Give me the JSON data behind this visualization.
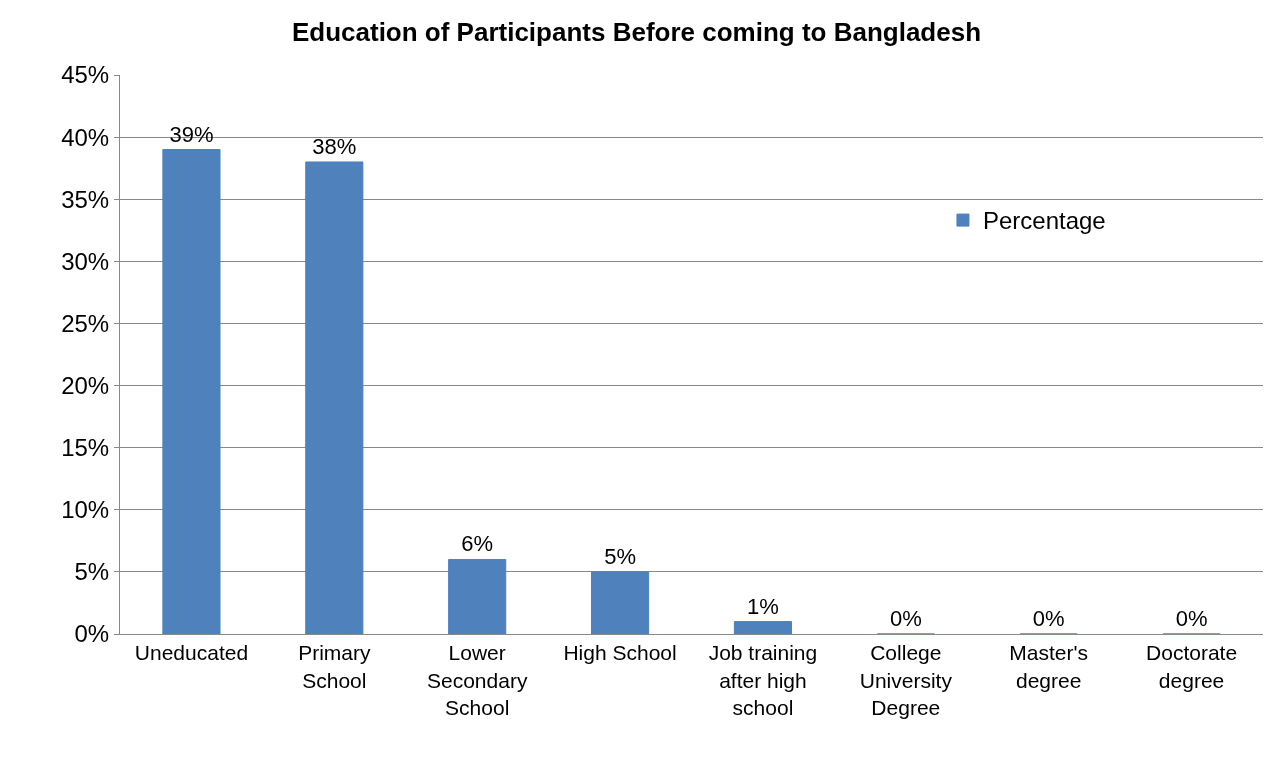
{
  "chart_data": {
    "type": "bar",
    "title": "Education of Participants Before coming to Bangladesh",
    "categories": [
      "Uneducated",
      "Primary School",
      "Lower Secondary School",
      "High School",
      "Job training after high school",
      "College University Degree",
      "Master's degree",
      "Doctorate degree"
    ],
    "series": [
      {
        "name": "Percentage",
        "color": "#4f81bd",
        "values": [
          39,
          38,
          6,
          5,
          1,
          0,
          0,
          0
        ],
        "value_labels": [
          "39%",
          "38%",
          "6%",
          "5%",
          "1%",
          "0%",
          "0%",
          "0%"
        ]
      }
    ],
    "ylim": [
      0,
      45
    ],
    "yticks": [
      {
        "value": 0,
        "label": "0%"
      },
      {
        "value": 5,
        "label": "5%"
      },
      {
        "value": 10,
        "label": "10%"
      },
      {
        "value": 15,
        "label": "15%"
      },
      {
        "value": 20,
        "label": "20%"
      },
      {
        "value": 25,
        "label": "25%"
      },
      {
        "value": 30,
        "label": "30%"
      },
      {
        "value": 35,
        "label": "35%"
      },
      {
        "value": 40,
        "label": "40%"
      },
      {
        "value": 45,
        "label": "45%"
      }
    ],
    "grid": "y",
    "legend": "right"
  }
}
